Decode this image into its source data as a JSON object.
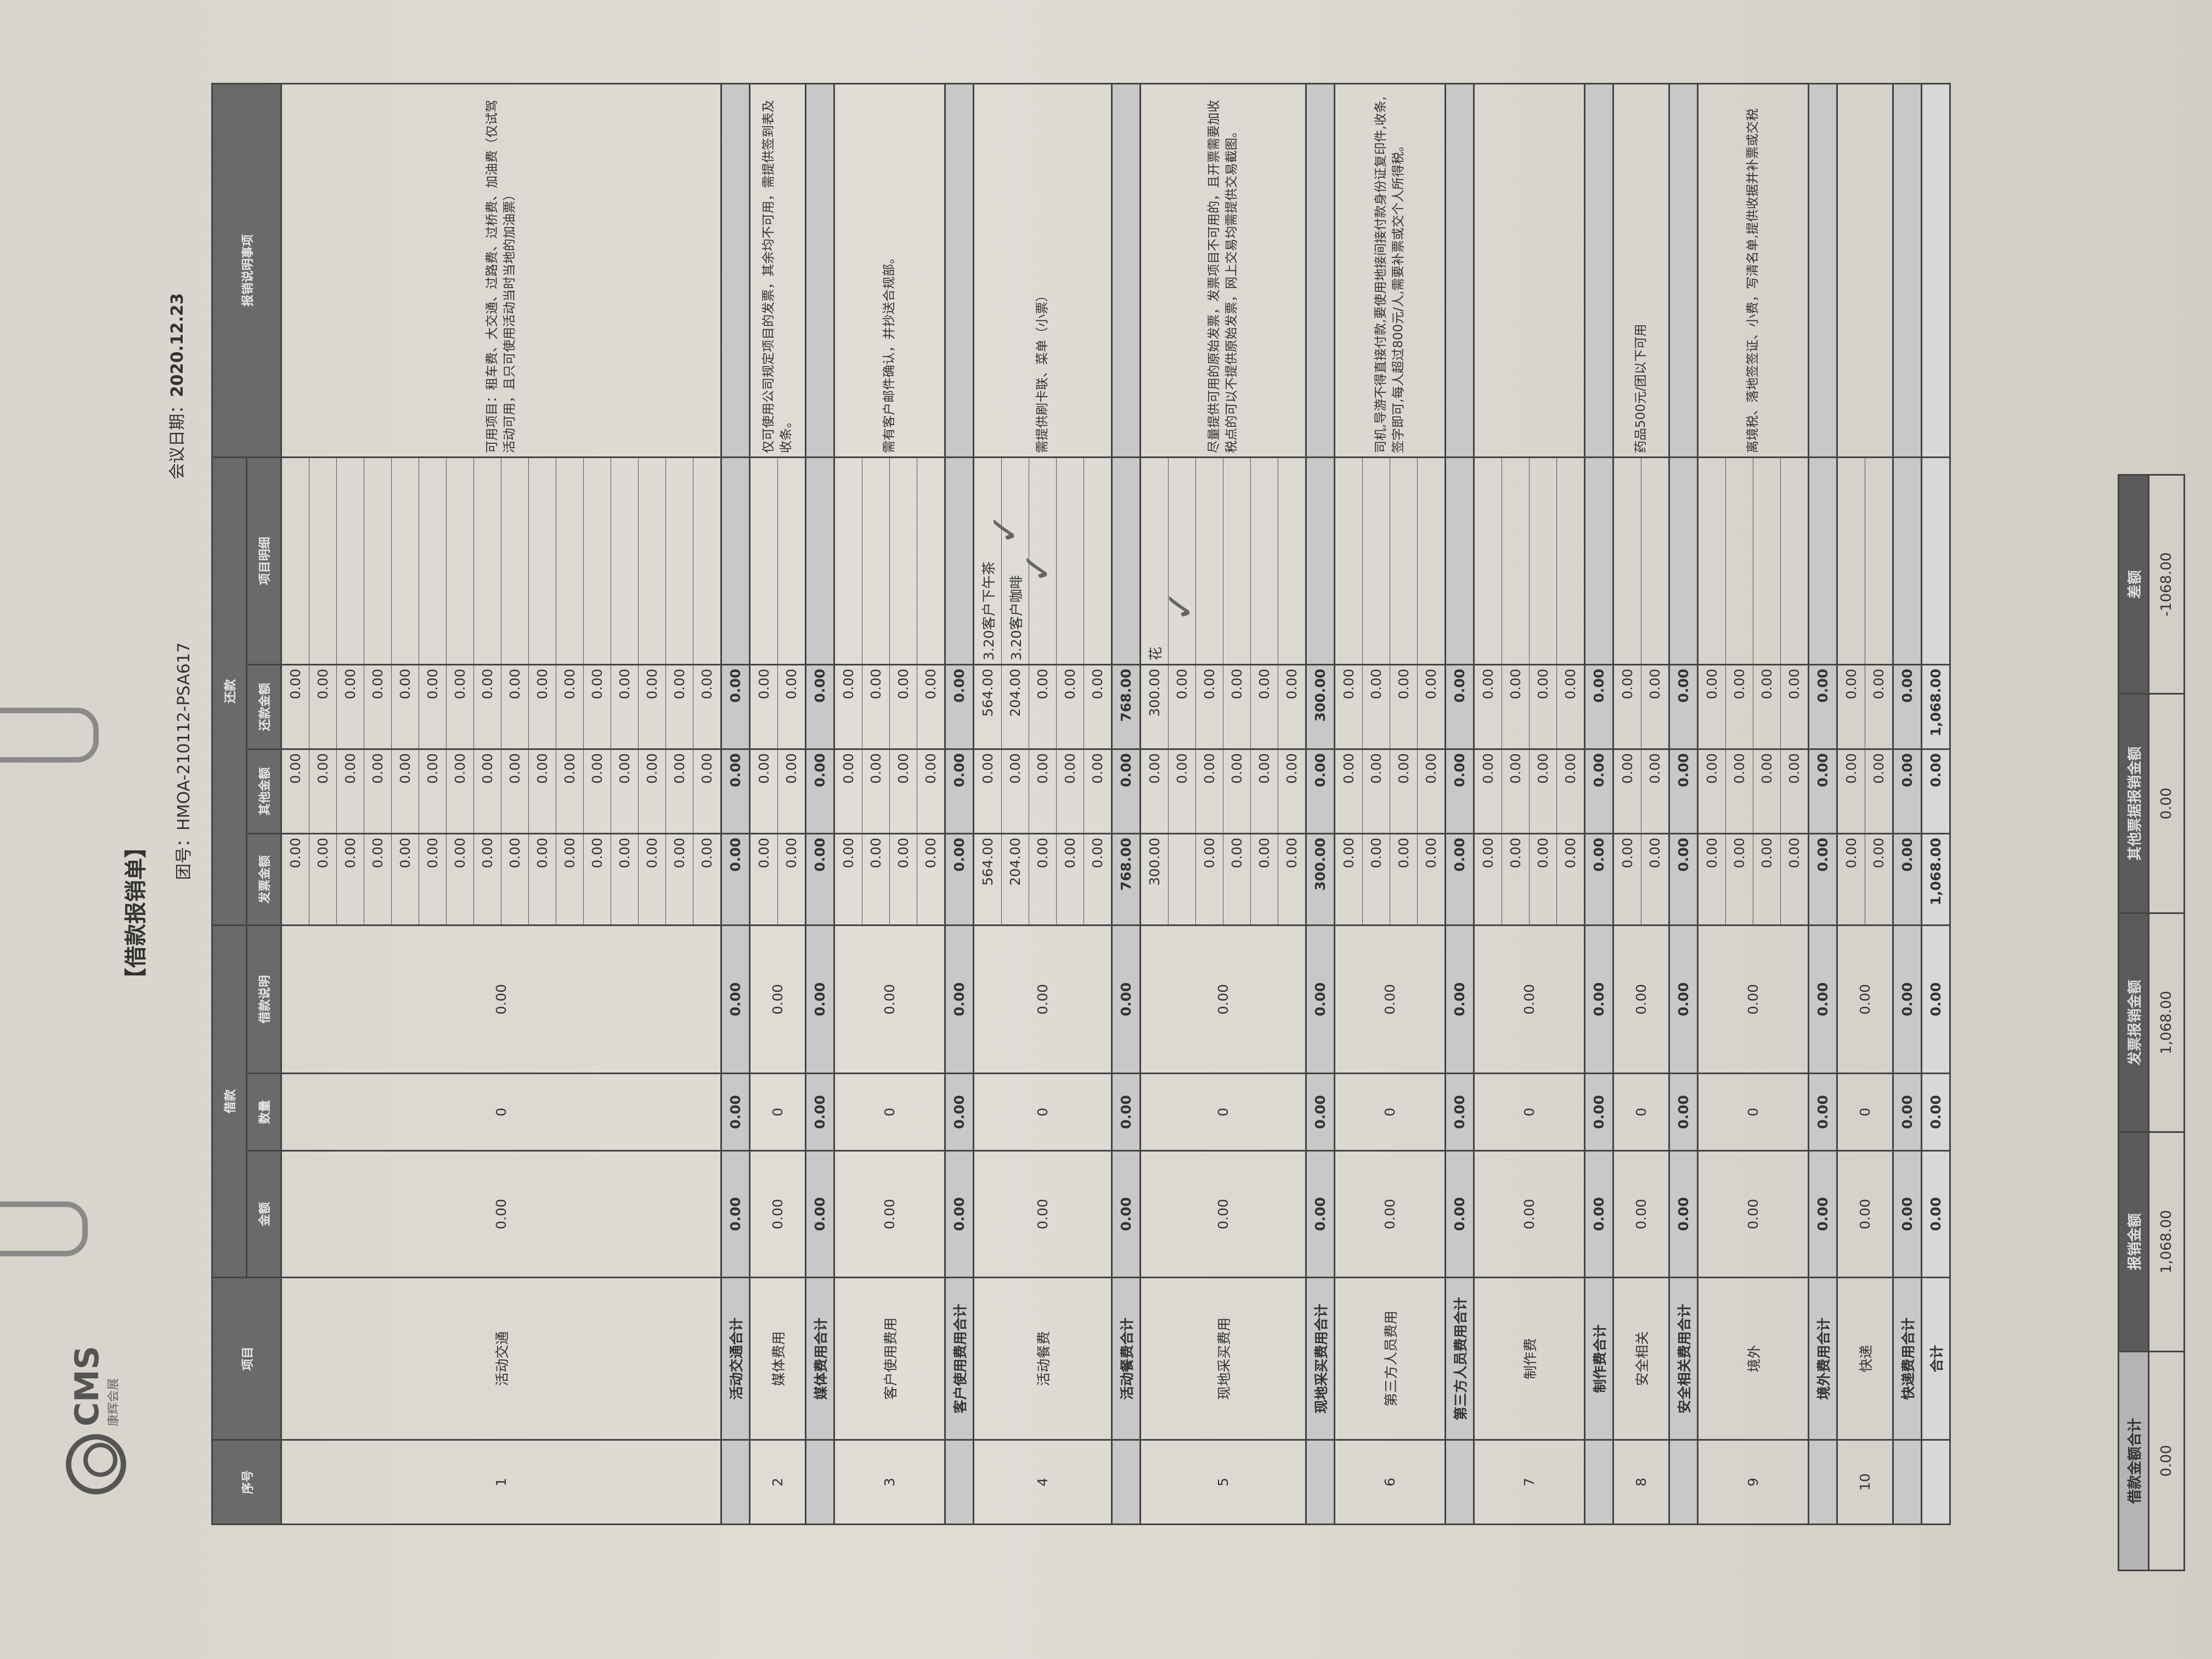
{
  "logo": {
    "brand": "CMS",
    "sub": "康辉会展"
  },
  "title": "【借款报销单】",
  "group_no": "团号：HMOA-210112-PSA617",
  "meeting_date_label": "会议日期：",
  "meeting_date": "2020.12.23",
  "headers": {
    "seq": "序号",
    "item": "项目",
    "loan_group": "借款",
    "repay_group": "还款",
    "amount": "金额",
    "quantity": "数量",
    "loan_note": "借款说明",
    "invoice_amount": "发票金额",
    "other_amount": "其他金额",
    "repay_amount": "还款金额",
    "item_detail": "项目明细",
    "notes": "报销说明事项"
  },
  "groups": [
    {
      "seq": "1",
      "item": "活动交通",
      "amount": "0.00",
      "quantity": "0",
      "loan_note": "0.00",
      "rows": [
        [
          "0.00",
          "0.00",
          "0.00",
          ""
        ],
        [
          "0.00",
          "0.00",
          "0.00",
          ""
        ],
        [
          "0.00",
          "0.00",
          "0.00",
          ""
        ],
        [
          "0.00",
          "0.00",
          "0.00",
          ""
        ],
        [
          "0.00",
          "0.00",
          "0.00",
          ""
        ],
        [
          "0.00",
          "0.00",
          "0.00",
          ""
        ],
        [
          "0.00",
          "0.00",
          "0.00",
          ""
        ],
        [
          "0.00",
          "0.00",
          "0.00",
          ""
        ],
        [
          "0.00",
          "0.00",
          "0.00",
          ""
        ],
        [
          "0.00",
          "0.00",
          "0.00",
          ""
        ],
        [
          "0.00",
          "0.00",
          "0.00",
          ""
        ],
        [
          "0.00",
          "0.00",
          "0.00",
          ""
        ],
        [
          "0.00",
          "0.00",
          "0.00",
          ""
        ],
        [
          "0.00",
          "0.00",
          "0.00",
          ""
        ],
        [
          "0.00",
          "0.00",
          "0.00",
          ""
        ],
        [
          "0.00",
          "0.00",
          "0.00",
          ""
        ]
      ],
      "note": "可用项目：租车费、大交通、过路费、过桥费、加油费（仅试驾活动可用，且只可使用活动当时当地的加油票）",
      "subtotal": {
        "label": "活动交通合计",
        "amount": "0.00",
        "quantity": "0.00",
        "loan_note": "0.00",
        "invoice": "0.00",
        "other": "0.00",
        "repay": "0.00"
      }
    },
    {
      "seq": "2",
      "item": "媒体费用",
      "amount": "0.00",
      "quantity": "0",
      "loan_note": "0.00",
      "rows": [
        [
          "0.00",
          "0.00",
          "0.00",
          ""
        ],
        [
          "0.00",
          "0.00",
          "0.00",
          ""
        ]
      ],
      "note": "仅可使用公司规定项目的发票，其余均不可用，需提供签到表及收条。",
      "subtotal": {
        "label": "媒体费用合计",
        "amount": "0.00",
        "quantity": "0.00",
        "loan_note": "0.00",
        "invoice": "0.00",
        "other": "0.00",
        "repay": "0.00"
      }
    },
    {
      "seq": "3",
      "item": "客户使用费用",
      "amount": "0.00",
      "quantity": "0",
      "loan_note": "0.00",
      "rows": [
        [
          "0.00",
          "0.00",
          "0.00",
          ""
        ],
        [
          "0.00",
          "0.00",
          "0.00",
          ""
        ],
        [
          "0.00",
          "0.00",
          "0.00",
          ""
        ],
        [
          "0.00",
          "0.00",
          "0.00",
          ""
        ]
      ],
      "note": "需有客户邮件确认，并抄送合规部。",
      "subtotal": {
        "label": "客户使用费用合计",
        "amount": "0.00",
        "quantity": "0.00",
        "loan_note": "0.00",
        "invoice": "0.00",
        "other": "0.00",
        "repay": "0.00"
      }
    },
    {
      "seq": "4",
      "item": "活动餐费",
      "amount": "0.00",
      "quantity": "0",
      "loan_note": "0.00",
      "rows": [
        [
          "564.00",
          "0.00",
          "564.00",
          "3.20客户下午茶"
        ],
        [
          "204.00",
          "0.00",
          "204.00",
          "3.20客户咖啡"
        ],
        [
          "0.00",
          "0.00",
          "0.00",
          ""
        ],
        [
          "0.00",
          "0.00",
          "0.00",
          ""
        ],
        [
          "0.00",
          "0.00",
          "0.00",
          ""
        ]
      ],
      "note": "需提供刷卡联、菜单（小票）",
      "subtotal": {
        "label": "活动餐费合计",
        "amount": "0.00",
        "quantity": "0.00",
        "loan_note": "0.00",
        "invoice": "768.00",
        "other": "0.00",
        "repay": "768.00"
      }
    },
    {
      "seq": "5",
      "item": "现地采买费用",
      "amount": "0.00",
      "quantity": "0",
      "loan_note": "0.00",
      "rows": [
        [
          "300.00",
          "0.00",
          "300.00",
          "花"
        ],
        [
          "",
          "0.00",
          "0.00",
          ""
        ],
        [
          "0.00",
          "0.00",
          "0.00",
          ""
        ],
        [
          "0.00",
          "0.00",
          "0.00",
          ""
        ],
        [
          "0.00",
          "0.00",
          "0.00",
          ""
        ],
        [
          "0.00",
          "0.00",
          "0.00",
          ""
        ]
      ],
      "note": "尽量提供可用的原始发票，发票项目不可用的，且开票需要加收税点的可以不提供原始发票，网上交易均需提供交易截图。",
      "subtotal": {
        "label": "现地采买费用合计",
        "amount": "0.00",
        "quantity": "0.00",
        "loan_note": "0.00",
        "invoice": "300.00",
        "other": "0.00",
        "repay": "300.00"
      }
    },
    {
      "seq": "6",
      "item": "第三方人员费用",
      "amount": "0.00",
      "quantity": "0",
      "loan_note": "0.00",
      "rows": [
        [
          "0.00",
          "0.00",
          "0.00",
          ""
        ],
        [
          "0.00",
          "0.00",
          "0.00",
          ""
        ],
        [
          "0.00",
          "0.00",
          "0.00",
          ""
        ],
        [
          "0.00",
          "0.00",
          "0.00",
          ""
        ]
      ],
      "note": "司机,导游不得直接付款,要使用地接间接付款身份证复印件,收条,签字即可,每人超过800元/人,需要补票或交个人所得税。",
      "subtotal": {
        "label": "第三方人员费用合计",
        "amount": "0.00",
        "quantity": "0.00",
        "loan_note": "0.00",
        "invoice": "0.00",
        "other": "0.00",
        "repay": "0.00"
      }
    },
    {
      "seq": "7",
      "item": "制作费",
      "amount": "0.00",
      "quantity": "0",
      "loan_note": "0.00",
      "rows": [
        [
          "0.00",
          "0.00",
          "0.00",
          ""
        ],
        [
          "0.00",
          "0.00",
          "0.00",
          ""
        ],
        [
          "0.00",
          "0.00",
          "0.00",
          ""
        ],
        [
          "0.00",
          "0.00",
          "0.00",
          ""
        ]
      ],
      "note": "",
      "subtotal": {
        "label": "制作费合计",
        "amount": "0.00",
        "quantity": "0.00",
        "loan_note": "0.00",
        "invoice": "0.00",
        "other": "0.00",
        "repay": "0.00"
      }
    },
    {
      "seq": "8",
      "item": "安全相关",
      "amount": "0.00",
      "quantity": "0",
      "loan_note": "0.00",
      "rows": [
        [
          "0.00",
          "0.00",
          "0.00",
          ""
        ],
        [
          "0.00",
          "0.00",
          "0.00",
          ""
        ]
      ],
      "note": "药品500元/团以下可用",
      "subtotal": {
        "label": "安全相关费用合计",
        "amount": "0.00",
        "quantity": "0.00",
        "loan_note": "0.00",
        "invoice": "0.00",
        "other": "0.00",
        "repay": "0.00"
      }
    },
    {
      "seq": "9",
      "item": "境外",
      "amount": "0.00",
      "quantity": "0",
      "loan_note": "0.00",
      "rows": [
        [
          "0.00",
          "0.00",
          "0.00",
          ""
        ],
        [
          "0.00",
          "0.00",
          "0.00",
          ""
        ],
        [
          "0.00",
          "0.00",
          "0.00",
          ""
        ],
        [
          "0.00",
          "0.00",
          "0.00",
          ""
        ]
      ],
      "note": "离境税、落地签签证、小费，写清名单,提供收据并补票或交税",
      "subtotal": {
        "label": "境外费用合计",
        "amount": "0.00",
        "quantity": "0.00",
        "loan_note": "0.00",
        "invoice": "0.00",
        "other": "0.00",
        "repay": "0.00"
      }
    },
    {
      "seq": "10",
      "item": "快递",
      "amount": "0.00",
      "quantity": "0",
      "loan_note": "0.00",
      "rows": [
        [
          "0.00",
          "0.00",
          "0.00",
          ""
        ],
        [
          "0.00",
          "0.00",
          "0.00",
          ""
        ]
      ],
      "note": "",
      "subtotal": {
        "label": "快递费用合计",
        "amount": "0.00",
        "quantity": "0.00",
        "loan_note": "0.00",
        "invoice": "0.00",
        "other": "0.00",
        "repay": "0.00"
      }
    }
  ],
  "grand_total": {
    "label": "合计",
    "amount": "0.00",
    "quantity": "0.00",
    "loan_note": "0.00",
    "invoice": "1,068.00",
    "other": "0.00",
    "repay": "1,068.00"
  },
  "summary": {
    "headers": [
      "借款金额合计",
      "报销金额",
      "发票报销金额",
      "其他票据报销金额",
      "差额"
    ],
    "values": [
      "0.00",
      "1,068.00",
      "1,068.00",
      "0.00",
      "-1068.00"
    ]
  },
  "colors": {
    "header_bg": "#6a6a6a",
    "subtotal_bg": "#c8c8c8",
    "paper": "#e0ddd7"
  }
}
